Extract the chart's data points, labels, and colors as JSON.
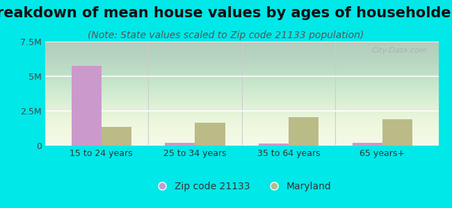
{
  "title": "Breakdown of mean house values by ages of householders",
  "subtitle": "(Note: State values scaled to Zip code 21133 population)",
  "categories": [
    "15 to 24 years",
    "25 to 34 years",
    "35 to 64 years",
    "65 years+"
  ],
  "zip_values": [
    5750000,
    220000,
    170000,
    200000
  ],
  "state_values": [
    1350000,
    1650000,
    2050000,
    1900000
  ],
  "zip_color": "#cc99cc",
  "state_color": "#bbbb88",
  "background_outer": "#00e8e8",
  "background_inner_top": "#ffffff",
  "background_inner_bottom": "#ddeedd",
  "ylim": [
    0,
    7500000
  ],
  "yticks": [
    0,
    2500000,
    5000000,
    7500000
  ],
  "ytick_labels": [
    "0",
    "2.5M",
    "5M",
    "7.5M"
  ],
  "legend_zip_label": "Zip code 21133",
  "legend_state_label": "Maryland",
  "title_fontsize": 15,
  "subtitle_fontsize": 10,
  "bar_width": 0.32,
  "watermark": "City-Data.com"
}
